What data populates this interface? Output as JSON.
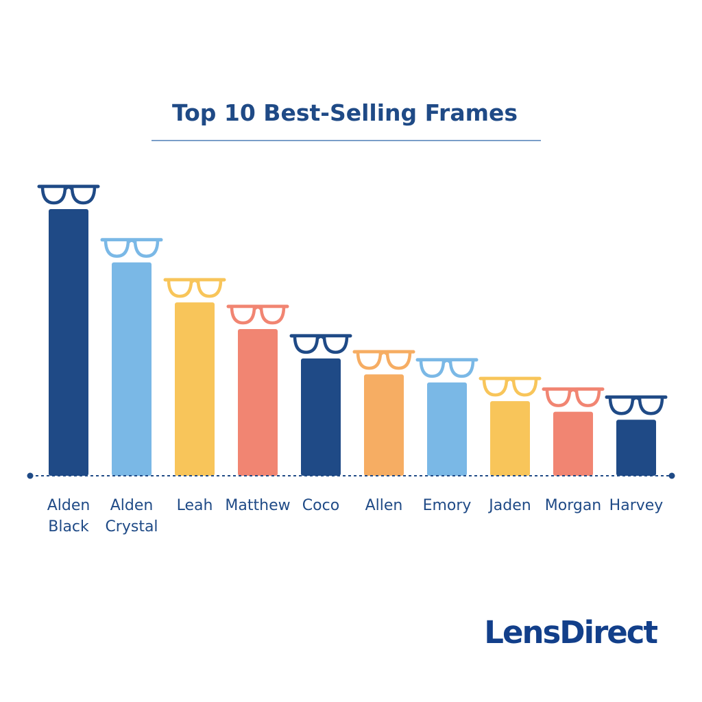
{
  "brand": {
    "name": "LensDirect"
  },
  "colors": {
    "title": "#1f4a86",
    "title_rule": "#4f7fb5",
    "axis": "#1f4a86",
    "labels": "#1f4a86",
    "brand": "#123f8a"
  },
  "chart_data": {
    "type": "bar",
    "title": "Top 10 Best-Selling Frames",
    "xlabel": "",
    "ylabel": "",
    "grid": false,
    "categories": [
      [
        "Alden",
        "Black"
      ],
      [
        "Alden",
        "Crystal"
      ],
      [
        "Leah"
      ],
      [
        "Matthew"
      ],
      [
        "Coco"
      ],
      [
        "Allen"
      ],
      [
        "Emory"
      ],
      [
        "Jaden"
      ],
      [
        "Morgan"
      ],
      [
        "Harvey"
      ]
    ],
    "values": [
      100,
      80,
      65,
      55,
      44,
      38,
      35,
      28,
      24,
      21
    ],
    "value_scale": "relative, no y-axis shown",
    "bar_colors": [
      "#1f4a86",
      "#7ab8e6",
      "#f8c55a",
      "#f18572",
      "#1f4a86",
      "#f6ad63",
      "#7ab8e6",
      "#f8c55a",
      "#f18572",
      "#1f4a86"
    ],
    "marker_icon": "eyeglasses-icon"
  }
}
